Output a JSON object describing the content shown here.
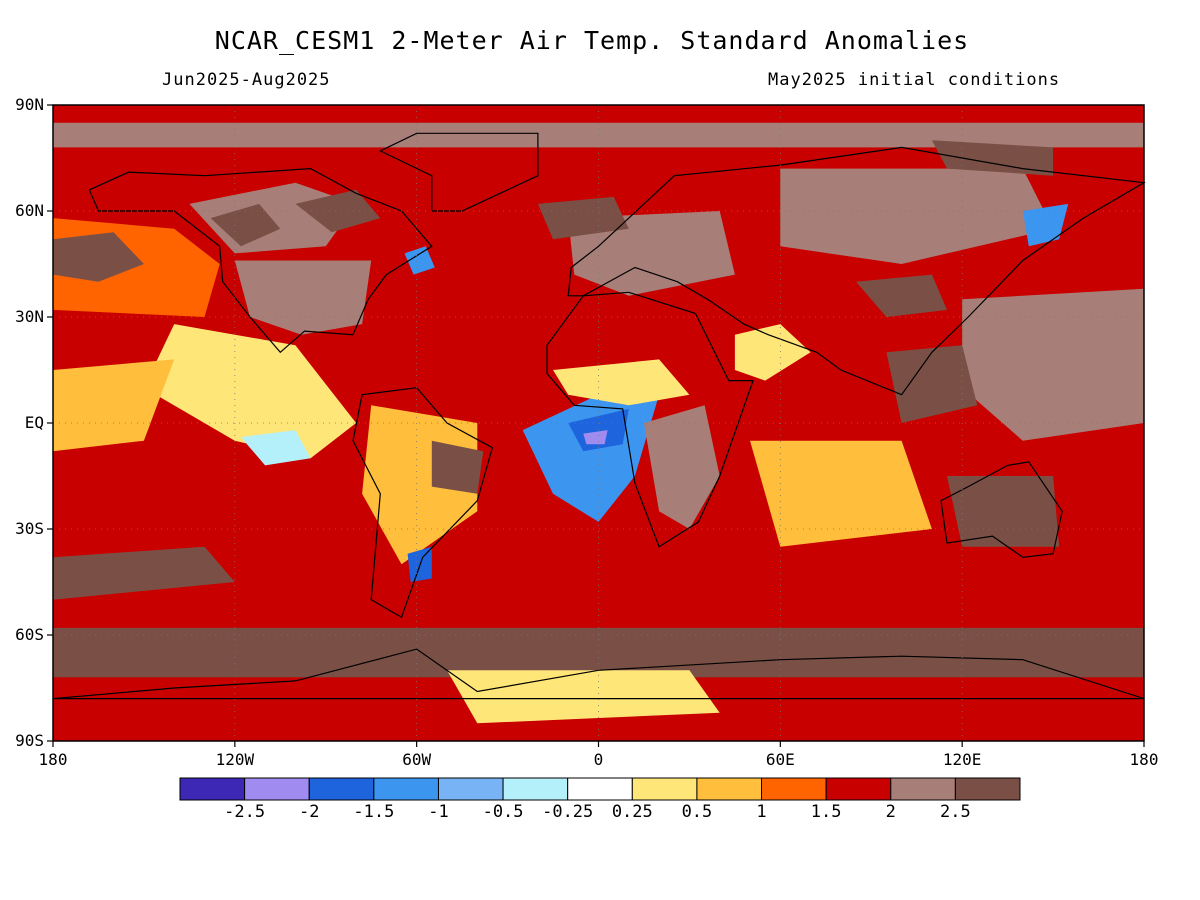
{
  "header": {
    "title": "NCAR_CESM1 2-Meter Air Temp. Standard Anomalies",
    "period": "Jun2025-Aug2025",
    "init": "May2025 initial conditions"
  },
  "axes": {
    "y_ticks": [
      {
        "label": "90N",
        "lat": 90
      },
      {
        "label": "60N",
        "lat": 60
      },
      {
        "label": "30N",
        "lat": 30
      },
      {
        "label": "EQ",
        "lat": 0
      },
      {
        "label": "30S",
        "lat": -30
      },
      {
        "label": "60S",
        "lat": -60
      },
      {
        "label": "90S",
        "lat": -90
      }
    ],
    "x_ticks": [
      {
        "label": "180",
        "lon": -180
      },
      {
        "label": "120W",
        "lon": -120
      },
      {
        "label": "60W",
        "lon": -60
      },
      {
        "label": "0",
        "lon": 0
      },
      {
        "label": "60E",
        "lon": 60
      },
      {
        "label": "120E",
        "lon": 120
      },
      {
        "label": "180",
        "lon": 180
      }
    ]
  },
  "legend": {
    "colors": [
      "#3c28b4",
      "#a08cf0",
      "#1e64dc",
      "#3c96f0",
      "#78b4f5",
      "#b4f0fa",
      "#ffffff",
      "#ffe678",
      "#ffbe3c",
      "#ff6400",
      "#c80000",
      "#a87f78",
      "#7a5046"
    ],
    "labels": [
      "-2.5",
      "-2",
      "-1.5",
      "-1",
      "-0.5",
      "-0.25",
      "0.25",
      "0.5",
      "1",
      "1.5",
      "2",
      "2.5"
    ]
  },
  "map": {
    "background_class": "1.5",
    "regions": [
      {
        "name": "arctic-warm",
        "cls": "2",
        "pts": [
          [
            -180,
            85
          ],
          [
            180,
            85
          ],
          [
            180,
            78
          ],
          [
            -180,
            78
          ]
        ]
      },
      {
        "name": "north-pacific-warm",
        "cls": "1",
        "pts": [
          [
            -180,
            58
          ],
          [
            -140,
            55
          ],
          [
            -125,
            45
          ],
          [
            -130,
            30
          ],
          [
            -180,
            32
          ]
        ]
      },
      {
        "name": "alaska-pacific-extreme",
        "cls": "2.5",
        "pts": [
          [
            -180,
            52
          ],
          [
            -160,
            54
          ],
          [
            -150,
            45
          ],
          [
            -165,
            40
          ],
          [
            -180,
            42
          ]
        ]
      },
      {
        "name": "canada-warm",
        "cls": "2",
        "pts": [
          [
            -135,
            62
          ],
          [
            -100,
            68
          ],
          [
            -80,
            62
          ],
          [
            -90,
            50
          ],
          [
            -120,
            48
          ]
        ]
      },
      {
        "name": "canada-extreme",
        "cls": "2.5",
        "pts": [
          [
            -128,
            58
          ],
          [
            -112,
            62
          ],
          [
            -105,
            55
          ],
          [
            -118,
            50
          ]
        ]
      },
      {
        "name": "hudson-extreme",
        "cls": "2.5",
        "pts": [
          [
            -100,
            62
          ],
          [
            -80,
            66
          ],
          [
            -72,
            58
          ],
          [
            -88,
            54
          ]
        ]
      },
      {
        "name": "usa-warm",
        "cls": "2",
        "pts": [
          [
            -120,
            46
          ],
          [
            -75,
            46
          ],
          [
            -78,
            28
          ],
          [
            -98,
            25
          ],
          [
            -115,
            30
          ]
        ]
      },
      {
        "name": "great-lakes-cool",
        "cls": "-1",
        "pts": [
          [
            -64,
            48
          ],
          [
            -57,
            50
          ],
          [
            -54,
            44
          ],
          [
            -61,
            42
          ]
        ]
      },
      {
        "name": "east-pacific-neutral",
        "cls": "0",
        "pts": [
          [
            -140,
            28
          ],
          [
            -100,
            22
          ],
          [
            -80,
            0
          ],
          [
            -95,
            -10
          ],
          [
            -120,
            -5
          ],
          [
            -150,
            10
          ]
        ]
      },
      {
        "name": "east-pacific-cool",
        "cls": "-0.25",
        "pts": [
          [
            -118,
            -4
          ],
          [
            -100,
            -2
          ],
          [
            -95,
            -10
          ],
          [
            -110,
            -12
          ]
        ]
      },
      {
        "name": "tropical-pacific-mild",
        "cls": "0.5",
        "pts": [
          [
            -180,
            15
          ],
          [
            -140,
            18
          ],
          [
            -150,
            -5
          ],
          [
            -180,
            -8
          ]
        ]
      },
      {
        "name": "atlantic-cool",
        "cls": "-1",
        "pts": [
          [
            -25,
            -2
          ],
          [
            10,
            12
          ],
          [
            20,
            8
          ],
          [
            12,
            -15
          ],
          [
            0,
            -28
          ],
          [
            -15,
            -20
          ]
        ]
      },
      {
        "name": "atlantic-cooler",
        "cls": "-1.5",
        "pts": [
          [
            -10,
            0
          ],
          [
            10,
            4
          ],
          [
            8,
            -6
          ],
          [
            -5,
            -8
          ]
        ]
      },
      {
        "name": "atlantic-coolest",
        "cls": "-2",
        "pts": [
          [
            -5,
            -3
          ],
          [
            3,
            -2
          ],
          [
            2,
            -6
          ],
          [
            -4,
            -6
          ]
        ]
      },
      {
        "name": "sahara-neutral",
        "cls": "0",
        "pts": [
          [
            -15,
            15
          ],
          [
            20,
            18
          ],
          [
            30,
            8
          ],
          [
            10,
            5
          ],
          [
            -10,
            8
          ]
        ]
      },
      {
        "name": "africa-warm",
        "cls": "2",
        "pts": [
          [
            15,
            0
          ],
          [
            35,
            5
          ],
          [
            40,
            -15
          ],
          [
            30,
            -30
          ],
          [
            20,
            -25
          ]
        ]
      },
      {
        "name": "arabia-neutral",
        "cls": "0",
        "pts": [
          [
            45,
            25
          ],
          [
            60,
            28
          ],
          [
            70,
            20
          ],
          [
            55,
            12
          ],
          [
            45,
            15
          ]
        ]
      },
      {
        "name": "europe-warm",
        "cls": "2",
        "pts": [
          [
            -10,
            58
          ],
          [
            40,
            60
          ],
          [
            45,
            42
          ],
          [
            10,
            36
          ],
          [
            -8,
            42
          ]
        ]
      },
      {
        "name": "greenland-sea-extreme",
        "cls": "2.5",
        "pts": [
          [
            -20,
            62
          ],
          [
            5,
            64
          ],
          [
            10,
            55
          ],
          [
            -15,
            52
          ]
        ]
      },
      {
        "name": "siberia-warm",
        "cls": "2",
        "pts": [
          [
            60,
            72
          ],
          [
            140,
            72
          ],
          [
            150,
            55
          ],
          [
            100,
            45
          ],
          [
            60,
            50
          ]
        ]
      },
      {
        "name": "siberia-extreme",
        "cls": "2.5",
        "pts": [
          [
            110,
            80
          ],
          [
            150,
            78
          ],
          [
            150,
            70
          ],
          [
            115,
            72
          ]
        ]
      },
      {
        "name": "china-extreme",
        "cls": "2.5",
        "pts": [
          [
            85,
            40
          ],
          [
            110,
            42
          ],
          [
            115,
            32
          ],
          [
            95,
            30
          ]
        ]
      },
      {
        "name": "okhotsk-cool",
        "cls": "-1",
        "pts": [
          [
            140,
            60
          ],
          [
            155,
            62
          ],
          [
            152,
            52
          ],
          [
            142,
            50
          ]
        ]
      },
      {
        "name": "west-pacific-warm",
        "cls": "2",
        "pts": [
          [
            120,
            35
          ],
          [
            180,
            38
          ],
          [
            180,
            0
          ],
          [
            140,
            -5
          ],
          [
            120,
            10
          ]
        ]
      },
      {
        "name": "maritime-extreme",
        "cls": "2.5",
        "pts": [
          [
            95,
            20
          ],
          [
            120,
            22
          ],
          [
            125,
            5
          ],
          [
            100,
            0
          ]
        ]
      },
      {
        "name": "indian-ocean-mild",
        "cls": "0.5",
        "pts": [
          [
            50,
            -5
          ],
          [
            100,
            -5
          ],
          [
            110,
            -30
          ],
          [
            60,
            -35
          ]
        ]
      },
      {
        "name": "australia-extreme",
        "cls": "2.5",
        "pts": [
          [
            115,
            -15
          ],
          [
            150,
            -15
          ],
          [
            152,
            -35
          ],
          [
            120,
            -35
          ]
        ]
      },
      {
        "name": "south-america-mild",
        "cls": "0.5",
        "pts": [
          [
            -75,
            5
          ],
          [
            -40,
            0
          ],
          [
            -40,
            -25
          ],
          [
            -65,
            -40
          ],
          [
            -78,
            -20
          ]
        ]
      },
      {
        "name": "brazil-extreme",
        "cls": "2.5",
        "pts": [
          [
            -55,
            -5
          ],
          [
            -38,
            -8
          ],
          [
            -40,
            -20
          ],
          [
            -55,
            -18
          ]
        ]
      },
      {
        "name": "argentina-cool",
        "cls": "-1.5",
        "pts": [
          [
            -63,
            -37
          ],
          [
            -55,
            -35
          ],
          [
            -55,
            -44
          ],
          [
            -62,
            -45
          ]
        ]
      },
      {
        "name": "south-pacific-extreme",
        "cls": "2.5",
        "pts": [
          [
            -180,
            -38
          ],
          [
            -130,
            -35
          ],
          [
            -120,
            -45
          ],
          [
            -180,
            -50
          ]
        ]
      },
      {
        "name": "southern-ocean-extreme",
        "cls": "2.5",
        "pts": [
          [
            -180,
            -58
          ],
          [
            180,
            -58
          ],
          [
            180,
            -72
          ],
          [
            -180,
            -72
          ]
        ]
      },
      {
        "name": "antarctica-warm",
        "cls": "1.5",
        "pts": [
          [
            -180,
            -72
          ],
          [
            180,
            -72
          ],
          [
            180,
            -90
          ],
          [
            -180,
            -90
          ]
        ]
      },
      {
        "name": "weddell-neutral",
        "cls": "0",
        "pts": [
          [
            -50,
            -70
          ],
          [
            30,
            -70
          ],
          [
            40,
            -82
          ],
          [
            -40,
            -85
          ]
        ]
      }
    ],
    "coastlines": [
      {
        "name": "north-america-coast",
        "pts": [
          [
            -168,
            66
          ],
          [
            -155,
            71
          ],
          [
            -130,
            70
          ],
          [
            -95,
            72
          ],
          [
            -80,
            65
          ],
          [
            -65,
            60
          ],
          [
            -55,
            50
          ],
          [
            -70,
            42
          ],
          [
            -76,
            35
          ],
          [
            -81,
            25
          ],
          [
            -97,
            26
          ],
          [
            -105,
            20
          ],
          [
            -115,
            30
          ],
          [
            -124,
            40
          ],
          [
            -125,
            50
          ],
          [
            -140,
            60
          ],
          [
            -165,
            60
          ]
        ]
      },
      {
        "name": "south-america-coast",
        "pts": [
          [
            -78,
            8
          ],
          [
            -60,
            10
          ],
          [
            -50,
            0
          ],
          [
            -35,
            -7
          ],
          [
            -40,
            -22
          ],
          [
            -58,
            -38
          ],
          [
            -65,
            -55
          ],
          [
            -75,
            -50
          ],
          [
            -72,
            -20
          ],
          [
            -81,
            -5
          ]
        ]
      },
      {
        "name": "africa-coast",
        "pts": [
          [
            -17,
            22
          ],
          [
            -5,
            36
          ],
          [
            10,
            37
          ],
          [
            32,
            31
          ],
          [
            43,
            12
          ],
          [
            51,
            12
          ],
          [
            40,
            -15
          ],
          [
            33,
            -28
          ],
          [
            20,
            -35
          ],
          [
            12,
            -17
          ],
          [
            8,
            4
          ],
          [
            -8,
            5
          ],
          [
            -17,
            14
          ]
        ]
      },
      {
        "name": "eurasia-coast",
        "pts": [
          [
            -10,
            36
          ],
          [
            -9,
            44
          ],
          [
            0,
            50
          ],
          [
            10,
            58
          ],
          [
            25,
            70
          ],
          [
            60,
            73
          ],
          [
            100,
            78
          ],
          [
            140,
            72
          ],
          [
            180,
            68
          ],
          [
            160,
            58
          ],
          [
            140,
            46
          ],
          [
            122,
            30
          ],
          [
            110,
            20
          ],
          [
            100,
            8
          ],
          [
            80,
            15
          ],
          [
            72,
            20
          ],
          [
            56,
            25
          ],
          [
            48,
            28
          ],
          [
            36,
            35
          ],
          [
            26,
            40
          ],
          [
            12,
            44
          ],
          [
            -5,
            36
          ]
        ]
      },
      {
        "name": "australia-coast",
        "pts": [
          [
            113,
            -22
          ],
          [
            122,
            -18
          ],
          [
            135,
            -12
          ],
          [
            142,
            -11
          ],
          [
            153,
            -25
          ],
          [
            150,
            -37
          ],
          [
            140,
            -38
          ],
          [
            130,
            -32
          ],
          [
            115,
            -34
          ]
        ]
      },
      {
        "name": "greenland-coast",
        "pts": [
          [
            -55,
            60
          ],
          [
            -45,
            60
          ],
          [
            -20,
            70
          ],
          [
            -20,
            82
          ],
          [
            -60,
            82
          ],
          [
            -72,
            77
          ],
          [
            -55,
            70
          ]
        ]
      },
      {
        "name": "antarctica-coast",
        "pts": [
          [
            -180,
            -78
          ],
          [
            -140,
            -75
          ],
          [
            -100,
            -73
          ],
          [
            -60,
            -64
          ],
          [
            -40,
            -76
          ],
          [
            0,
            -70
          ],
          [
            60,
            -67
          ],
          [
            100,
            -66
          ],
          [
            140,
            -67
          ],
          [
            180,
            -78
          ]
        ]
      }
    ]
  }
}
